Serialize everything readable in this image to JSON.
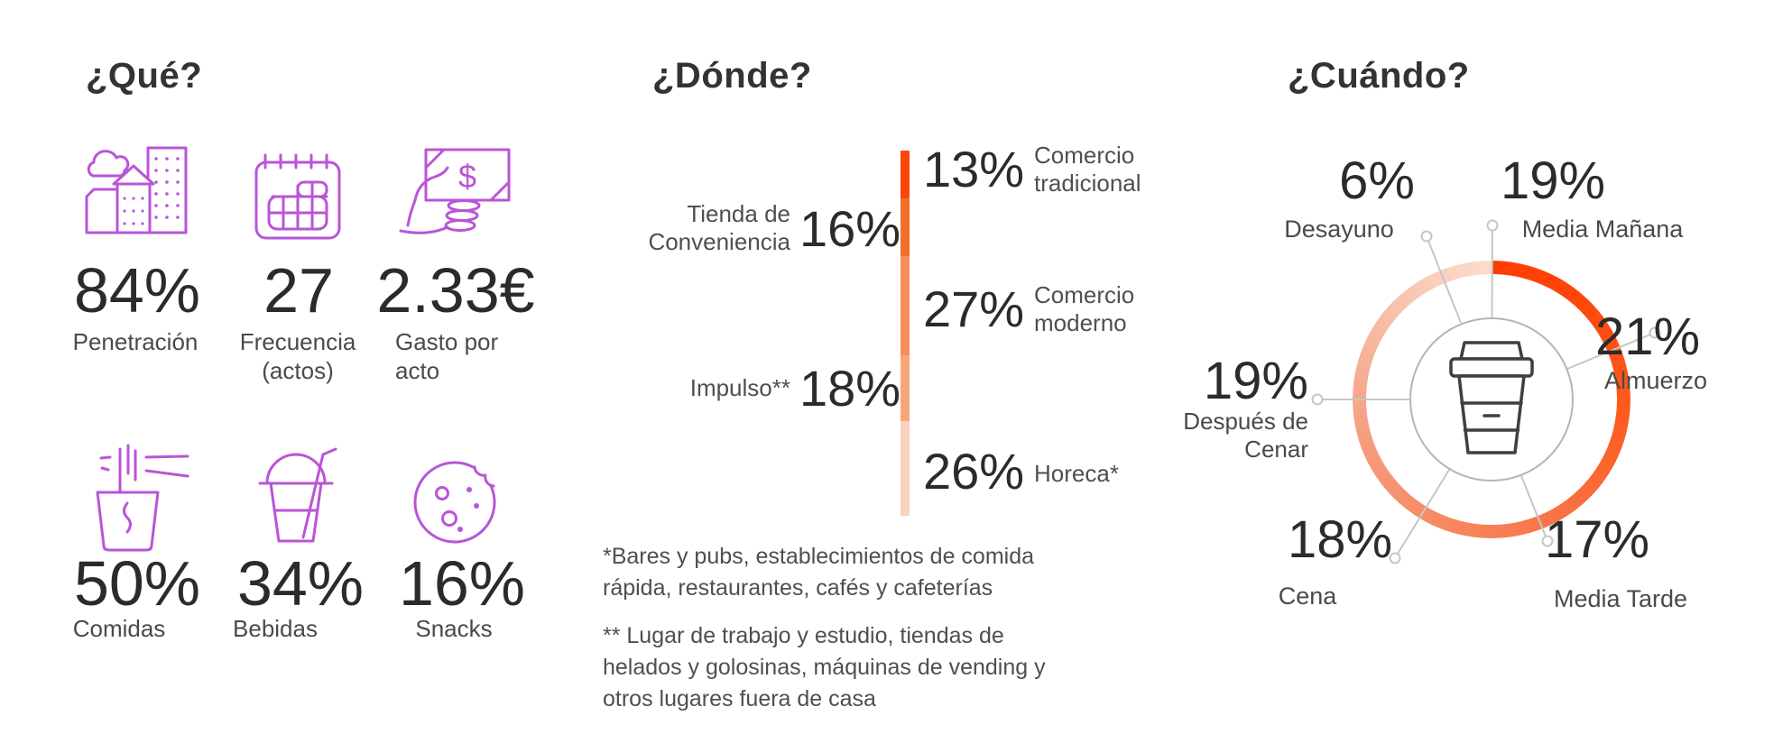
{
  "colors": {
    "purple": "#b955d7",
    "text_dark": "#2b2b2b",
    "text_gray": "#4a4a4a",
    "orange_bright": "#ff3c00",
    "leader_gray": "#c6c6c6",
    "inner_circle_gray": "#b5b5b5"
  },
  "sections": {
    "que": {
      "title": "¿Qué?",
      "stats": [
        {
          "icon": "city-icon",
          "value": "84%",
          "label_lines": [
            "Penetración"
          ]
        },
        {
          "icon": "calendar-icon",
          "value": "27",
          "label_lines": [
            "Frecuencia",
            "(actos)"
          ]
        },
        {
          "icon": "money-hand-icon",
          "value": "2.33€",
          "label_lines": [
            "Gasto por",
            "acto"
          ]
        },
        {
          "icon": "noodle-cup-icon",
          "value": "50%",
          "label_lines": [
            "Comidas"
          ]
        },
        {
          "icon": "drink-cup-icon",
          "value": "34%",
          "label_lines": [
            "Bebidas"
          ]
        },
        {
          "icon": "cookie-icon",
          "value": "16%",
          "label_lines": [
            "Snacks"
          ]
        }
      ]
    },
    "donde": {
      "title": "¿Dónde?",
      "segments": [
        {
          "value": "13%",
          "pct": 13,
          "color": "#fb470a",
          "side": "right",
          "label_lines": [
            "Comercio",
            "tradicional"
          ]
        },
        {
          "value": "16%",
          "pct": 16,
          "color": "#f26f2a",
          "side": "left",
          "label_lines": [
            "Tienda de",
            "Conveniencia"
          ]
        },
        {
          "value": "27%",
          "pct": 27,
          "color": "#f78e57",
          "side": "right",
          "label_lines": [
            "Comercio",
            "moderno"
          ]
        },
        {
          "value": "18%",
          "pct": 18,
          "color": "#f7a678",
          "side": "left",
          "label_lines": [
            "Impulso**"
          ]
        },
        {
          "value": "26%",
          "pct": 26,
          "color": "#fbd2bd",
          "side": "right",
          "label_lines": [
            "Horeca*"
          ]
        }
      ],
      "footnote1_lines": [
        "*Bares y pubs, establecimientos de comida",
        "rápida, restaurantes, cafés y cafeterías"
      ],
      "footnote2_lines": [
        "** Lugar de trabajo y estudio, tiendas de",
        "helados y golosinas, máquinas de vending y",
        "otros lugares fuera de casa"
      ]
    },
    "cuando": {
      "title": "¿Cuándo?",
      "moments": [
        {
          "value": "6%",
          "label": "Desayuno"
        },
        {
          "value": "19%",
          "label": "Media Mañana"
        },
        {
          "value": "21%",
          "label": "Almuerzo"
        },
        {
          "value": "17%",
          "label": "Media Tarde"
        },
        {
          "value": "18%",
          "label": "Cena"
        },
        {
          "value": "19%",
          "label_lines": [
            "Después de",
            "Cenar"
          ]
        }
      ],
      "ring_gradient": [
        [
          0,
          "#ff3c00"
        ],
        [
          40,
          "#ff470a"
        ],
        [
          95,
          "#fd5a1e"
        ],
        [
          150,
          "#fa7245"
        ],
        [
          205,
          "#f78a63"
        ],
        [
          255,
          "#f59e80"
        ],
        [
          305,
          "#f7bda4"
        ],
        [
          348,
          "#fbd6c6"
        ],
        [
          360,
          "#fcdccd"
        ]
      ]
    }
  },
  "chart_data": [
    {
      "type": "table",
      "title": "¿Qué?",
      "columns": [
        "metric",
        "value"
      ],
      "rows": [
        [
          "Penetración",
          "84%"
        ],
        [
          "Frecuencia (actos)",
          "27"
        ],
        [
          "Gasto por acto",
          "2.33€"
        ],
        [
          "Comidas",
          "50%"
        ],
        [
          "Bebidas",
          "34%"
        ],
        [
          "Snacks",
          "16%"
        ]
      ]
    },
    {
      "type": "bar",
      "title": "¿Dónde?",
      "subtype": "vertical-stacked-single-bar",
      "categories": [
        "Comercio tradicional",
        "Tienda de Conveniencia",
        "Comercio moderno",
        "Impulso**",
        "Horeca*"
      ],
      "values": [
        13,
        16,
        27,
        18,
        26
      ],
      "unit": "percent",
      "colors": [
        "#fb470a",
        "#f26f2a",
        "#f78e57",
        "#f7a678",
        "#fbd2bd"
      ],
      "notes": [
        "*Bares y pubs, establecimientos de comida rápida, restaurantes, cafés y cafeterías",
        "** Lugar de trabajo y estudio, tiendas de helados y golosinas, máquinas de vending y otros lugares fuera de casa"
      ]
    },
    {
      "type": "pie",
      "title": "¿Cuándo?",
      "subtype": "gradient-donut-with-center-icon",
      "categories": [
        "Desayuno",
        "Media Mañana",
        "Almuerzo",
        "Media Tarde",
        "Cena",
        "Después de Cenar"
      ],
      "values": [
        6,
        19,
        21,
        17,
        18,
        19
      ],
      "unit": "percent",
      "center_icon": "coffee-cup"
    }
  ]
}
